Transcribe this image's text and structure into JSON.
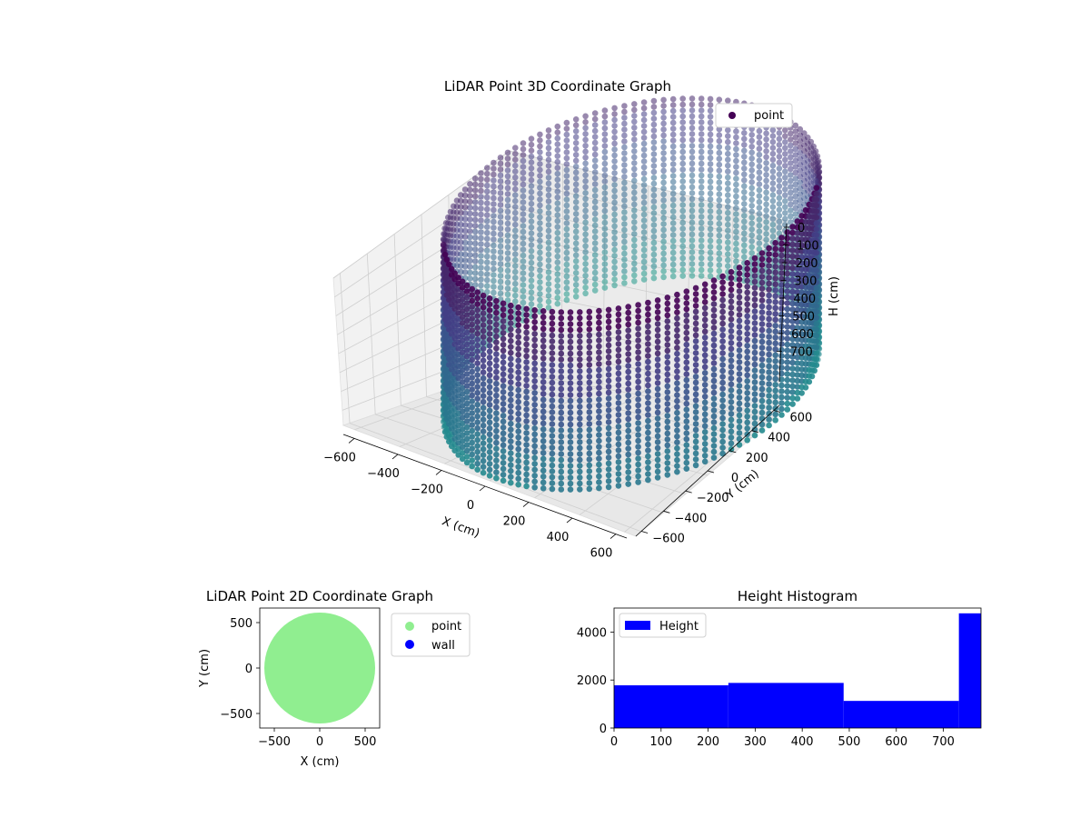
{
  "chart_data": [
    {
      "type": "scatter3d",
      "title": "LiDAR Point 3D Coordinate Graph",
      "xlabel": "X (cm)",
      "ylabel": "Y (cm)",
      "zlabel": "H (cm)",
      "xticks": [
        -600,
        -400,
        -200,
        0,
        200,
        400,
        600
      ],
      "yticks": [
        -600,
        -400,
        -200,
        0,
        200,
        400,
        600
      ],
      "zticks": [
        0,
        100,
        200,
        300,
        400,
        500,
        600,
        700
      ],
      "xlim": [
        -650,
        650
      ],
      "ylim": [
        -650,
        650
      ],
      "zlim": [
        780,
        0
      ],
      "z_inverted": true,
      "legend": {
        "entries": [
          "point"
        ],
        "placement": "top-right"
      },
      "colormap": "viridis",
      "series": [
        {
          "name": "point",
          "shape": "cylindrical wall",
          "radius": 600,
          "height_range": [
            0,
            780
          ],
          "legend_color": "#440154"
        }
      ]
    },
    {
      "type": "scatter",
      "title": "LiDAR Point 2D Coordinate Graph",
      "xlabel": "X (cm)",
      "ylabel": "Y (cm)",
      "xticks": [
        -500,
        0,
        500
      ],
      "yticks": [
        -500,
        0,
        500
      ],
      "xlim": [
        -660,
        660
      ],
      "ylim": [
        -660,
        660
      ],
      "legend": {
        "entries": [
          "point",
          "wall"
        ],
        "placement": "outside-right"
      },
      "series": [
        {
          "name": "point",
          "color": "#90ee90",
          "shape": "filled disc",
          "radius": 610
        },
        {
          "name": "wall",
          "color": "#0000ff"
        }
      ]
    },
    {
      "type": "bar",
      "title": "Height Histogram",
      "xlabel": "",
      "ylabel": "",
      "xticks": [
        0,
        100,
        200,
        300,
        400,
        500,
        600,
        700
      ],
      "yticks": [
        0,
        2000,
        4000
      ],
      "xlim": [
        0,
        780
      ],
      "ylim": [
        0,
        5000
      ],
      "legend": {
        "entries": [
          "Height"
        ],
        "placement": "top-left"
      },
      "bins": [
        {
          "start": 0,
          "end": 243,
          "value": 1780
        },
        {
          "start": 243,
          "end": 488,
          "value": 1880
        },
        {
          "start": 488,
          "end": 733,
          "value": 1130
        },
        {
          "start": 733,
          "end": 780,
          "value": 4780
        }
      ],
      "series": [
        {
          "name": "Height",
          "color": "#0000ff"
        }
      ]
    }
  ]
}
